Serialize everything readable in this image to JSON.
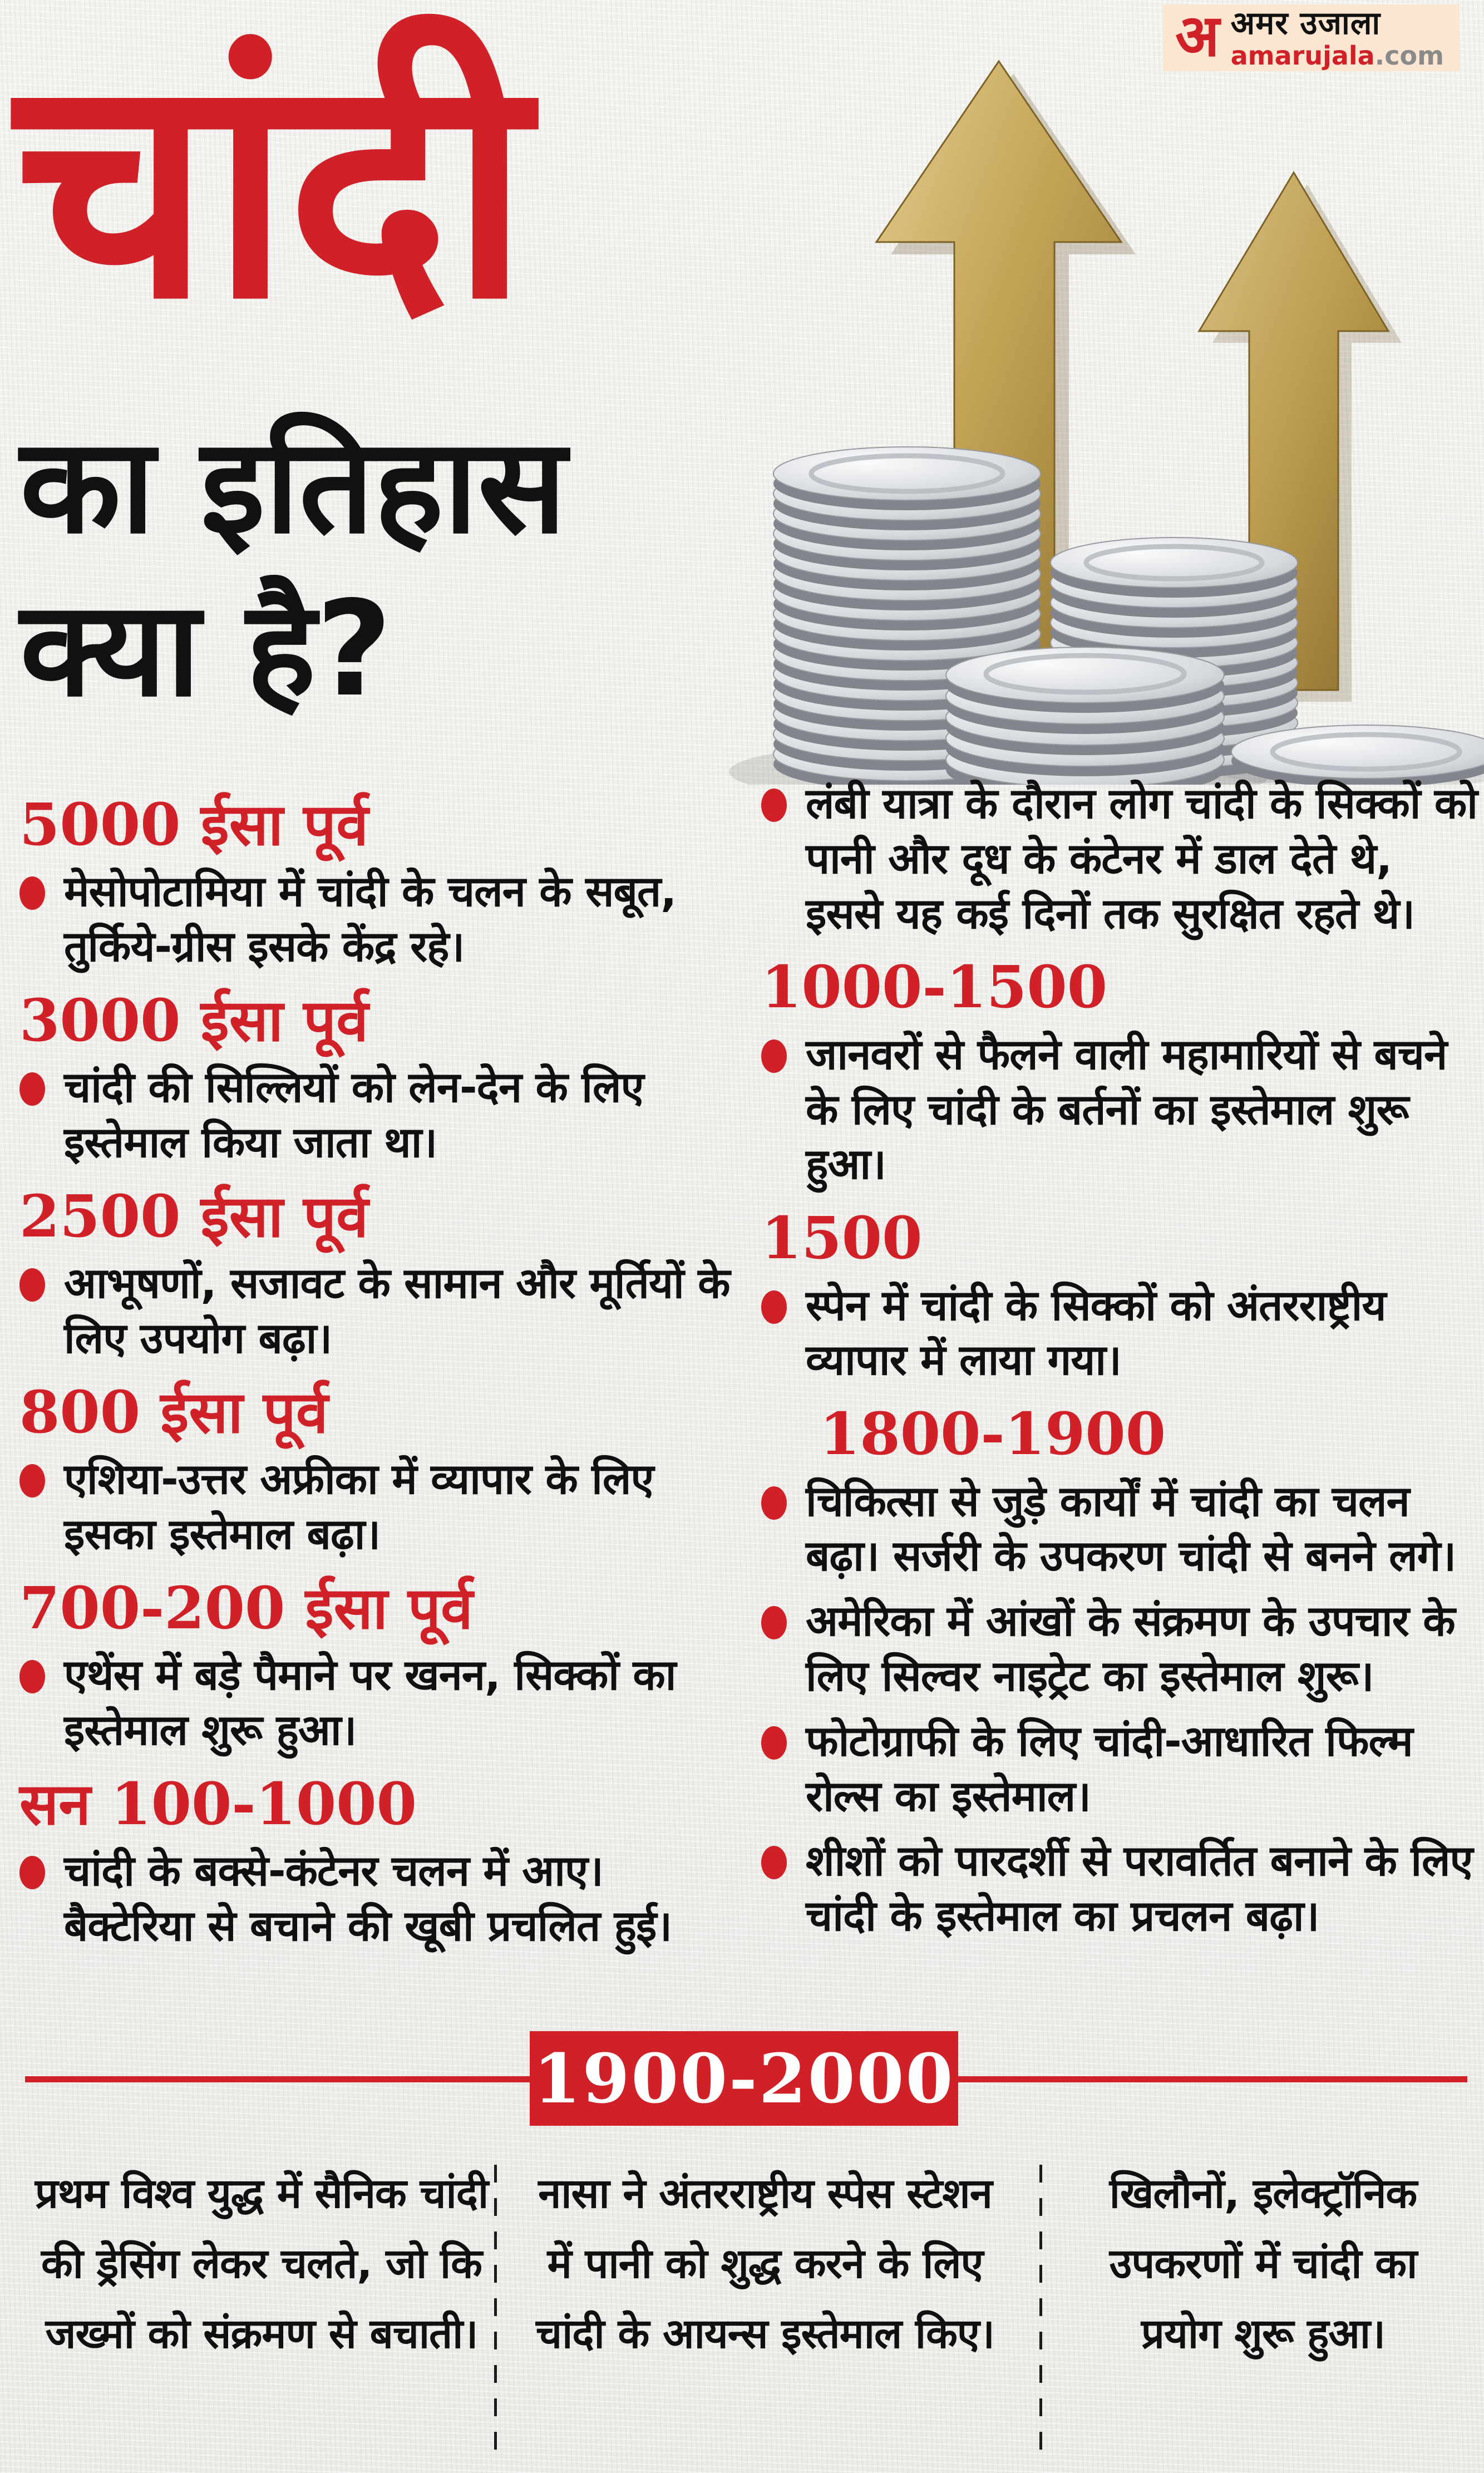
{
  "brand": {
    "logo_letter": "अ",
    "logo_text": "अमर उजाला",
    "logo_domain": "amarujala",
    "logo_tld": ".com"
  },
  "header": {
    "title": "चांदी",
    "subtitle": "का इतिहास क्या है?"
  },
  "colors": {
    "accent_red": "#d02128",
    "ink": "#101010",
    "paper": "#f1f0ee",
    "logo_bg": "#fce6d2",
    "gold": "#c3a355",
    "silver": "#d7dade"
  },
  "illustration": {
    "name": "silver-coin-stacks-with-golden-up-arrows"
  },
  "timeline_left": [
    {
      "period": "5000 ईसा पूर्व",
      "points": [
        "मेसोपोटामिया में चांदी के चलन के सबूत, तुर्किये-ग्रीस इसके केंद्र रहे।"
      ]
    },
    {
      "period": "3000 ईसा पूर्व",
      "points": [
        "चांदी की सिल्लियों को लेन-देन के लिए इस्तेमाल किया जाता था।"
      ]
    },
    {
      "period": "2500 ईसा पूर्व",
      "points": [
        "आभूषणों, सजावट के सामान और मूर्तियों के लिए उपयोग बढ़ा।"
      ]
    },
    {
      "period": "800 ईसा पूर्व",
      "points": [
        "एशिया-उत्तर अफ्रीका में व्यापार के लिए इसका इस्तेमाल बढ़ा।"
      ]
    },
    {
      "period": "700-200 ईसा पूर्व",
      "points": [
        "एथेंस में बड़े पैमाने पर खनन, सिक्कों का इस्तेमाल शुरू हुआ।"
      ]
    },
    {
      "period": "सन 100-1000",
      "points": [
        "चांदी के बक्से-कंटेनर चलन में आए। बैक्टेरिया से बचाने की खूबी प्रचलित हुई।"
      ]
    }
  ],
  "timeline_right": [
    {
      "period": "",
      "points": [
        "लंबी यात्रा के दौरान लोग चांदी के सिक्कों को पानी और दूध के कंटेनर में डाल देते थे, इससे यह कई दिनों तक सुरक्षित रहते थे।"
      ]
    },
    {
      "period": "1000-1500",
      "points": [
        "जानवरों से फैलने वाली महामारियों से बचने के लिए चांदी के बर्तनों का इस्तेमाल शुरू हुआ।"
      ]
    },
    {
      "period": "1500",
      "points": [
        "स्पेन में चांदी के सिक्कों को अंतरराष्ट्रीय व्यापार में लाया गया।"
      ]
    },
    {
      "period": "1800-1900",
      "points": [
        "चिकित्सा से जुड़े कार्यों में चांदी का चलन बढ़ा। सर्जरी के उपकरण चांदी से बनने लगे।",
        "अमेरिका में आंखों के संक्रमण के उपचार के लिए सिल्वर नाइट्रेट का इस्तेमाल शुरू।",
        "फोटोग्राफी के लिए चांदी-आधारित फिल्म रोल्स का इस्तेमाल।",
        "शीशों को पारदर्शी से परावर्तित बनाने के लिए चांदी के इस्तेमाल का प्रचलन बढ़ा।"
      ]
    }
  ],
  "era_1900": {
    "label": "1900-2000",
    "items": [
      "प्रथम विश्व युद्ध में सैनिक चांदी की ड्रेसिंग लेकर चलते, जो कि जख्मों को संक्रमण से बचाती।",
      "नासा ने अंतरराष्ट्रीय स्पेस स्टेशन में पानी को शुद्ध करने के लिए चांदी के आयन्स इस्तेमाल किए।",
      "खिलौनों, इलेक्ट्रॉनिक उपकरणों में चांदी का प्रयोग शुरू हुआ।"
    ]
  }
}
